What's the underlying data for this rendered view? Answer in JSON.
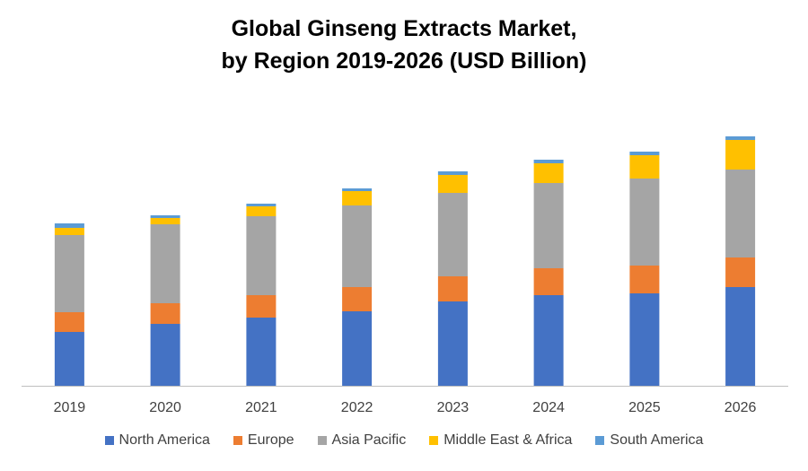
{
  "chart_data": {
    "type": "bar",
    "stacked": true,
    "title_lines": [
      "Global Ginseng Extracts Market,",
      "by Region 2019-2026 (USD Billion)"
    ],
    "categories": [
      "2019",
      "2020",
      "2021",
      "2022",
      "2023",
      "2024",
      "2025",
      "2026"
    ],
    "series": [
      {
        "name": "North America",
        "color": "#4472C4",
        "values": [
          60,
          69,
          76,
          83,
          94,
          101,
          103,
          110
        ]
      },
      {
        "name": "Europe",
        "color": "#ED7D31",
        "values": [
          22,
          23,
          25,
          27,
          28,
          30,
          31,
          33
        ]
      },
      {
        "name": "Asia Pacific",
        "color": "#A5A5A5",
        "values": [
          86,
          88,
          88,
          91,
          93,
          95,
          97,
          98
        ]
      },
      {
        "name": "Middle East & Africa",
        "color": "#FFC000",
        "values": [
          8,
          7,
          11,
          16,
          20,
          22,
          26,
          33
        ]
      },
      {
        "name": "South America",
        "color": "#5B9BD5",
        "values": [
          5,
          3,
          3,
          3,
          4,
          4,
          4,
          4
        ]
      }
    ],
    "ylim": [
      0,
      285
    ],
    "y_axis_visible": false,
    "grid": false,
    "legend_position": "bottom"
  }
}
